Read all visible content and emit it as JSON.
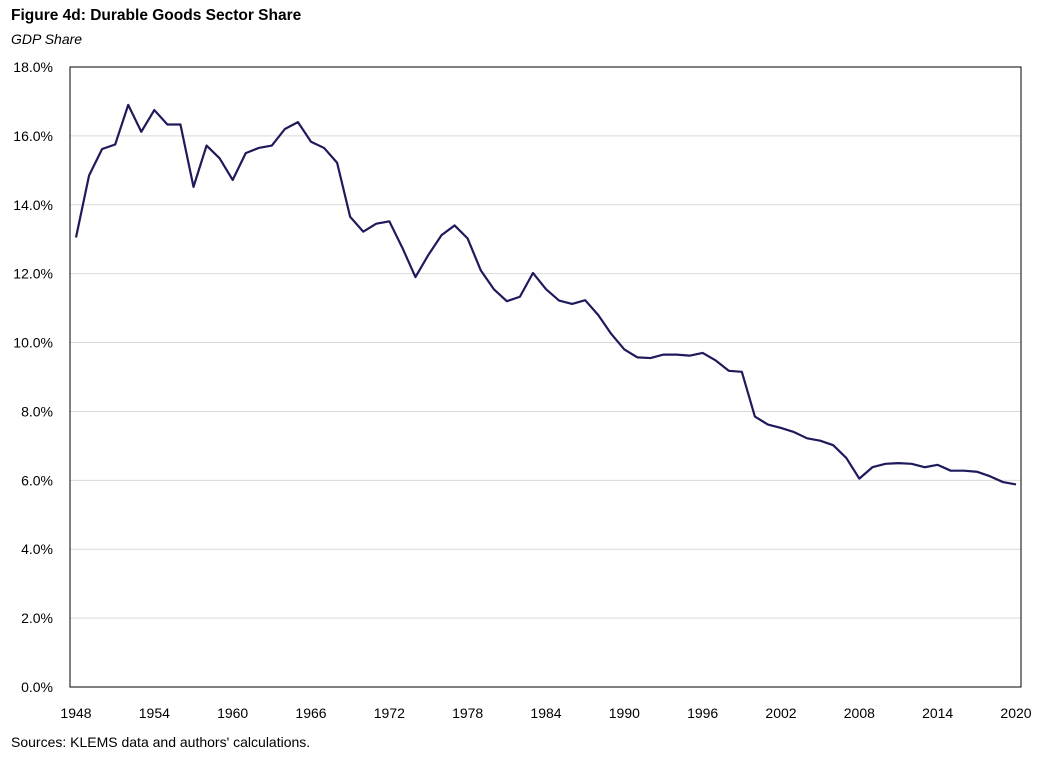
{
  "title": "Figure 4d: Durable Goods Sector Share",
  "subtitle": "GDP Share",
  "source": "Sources: KLEMS data and authors' calculations.",
  "chart_data": {
    "type": "line",
    "title": "Figure 4d: Durable Goods Sector Share",
    "subtitle": "GDP Share",
    "xlabel": "",
    "ylabel": "",
    "xlim": [
      1948,
      2020
    ],
    "ylim": [
      0,
      18
    ],
    "y_ticks": [
      "0.0%",
      "2.0%",
      "4.0%",
      "6.0%",
      "8.0%",
      "10.0%",
      "12.0%",
      "14.0%",
      "16.0%",
      "18.0%"
    ],
    "x_ticks": [
      "1948",
      "1954",
      "1960",
      "1966",
      "1972",
      "1978",
      "1984",
      "1990",
      "1996",
      "2002",
      "2008",
      "2014",
      "2020"
    ],
    "grid": "horizontal",
    "legend": "none",
    "line_color": "#1f1a5c",
    "series": [
      {
        "x": [
          1948,
          1949,
          1950,
          1951,
          1952,
          1953,
          1954,
          1955,
          1956,
          1957,
          1958,
          1959,
          1960,
          1961,
          1962,
          1963,
          1964,
          1965,
          1966,
          1967,
          1968,
          1969,
          1970,
          1971,
          1972,
          1973,
          1974,
          1975,
          1976,
          1977,
          1978,
          1979,
          1980,
          1981,
          1982,
          1983,
          1984,
          1985,
          1986,
          1987,
          1988,
          1989,
          1990,
          1991,
          1992,
          1993,
          1994,
          1995,
          1996,
          1997,
          1998,
          1999,
          2000,
          2001,
          2002,
          2003,
          2004,
          2005,
          2006,
          2007,
          2008,
          2009,
          2010,
          2011,
          2012,
          2013,
          2014,
          2015,
          2016,
          2017,
          2018,
          2019,
          2020
        ],
        "values": [
          13.05,
          14.85,
          15.62,
          15.75,
          16.9,
          16.12,
          16.75,
          16.33,
          16.33,
          14.52,
          15.72,
          15.35,
          14.72,
          15.5,
          15.65,
          15.72,
          16.2,
          16.4,
          15.83,
          15.65,
          15.22,
          13.65,
          13.22,
          13.45,
          13.52,
          12.75,
          11.9,
          12.55,
          13.12,
          13.4,
          13.02,
          12.1,
          11.55,
          11.2,
          11.33,
          12.02,
          11.55,
          11.22,
          11.12,
          11.23,
          10.8,
          10.25,
          9.8,
          9.57,
          9.55,
          9.65,
          9.65,
          9.62,
          9.7,
          9.48,
          9.18,
          9.15,
          7.85,
          7.62,
          7.52,
          7.4,
          7.22,
          7.15,
          7.02,
          6.65,
          6.05,
          6.38,
          6.48,
          6.5,
          6.48,
          6.38,
          6.45,
          6.28,
          6.28,
          6.25,
          6.12,
          5.95,
          5.88
        ]
      }
    ]
  }
}
